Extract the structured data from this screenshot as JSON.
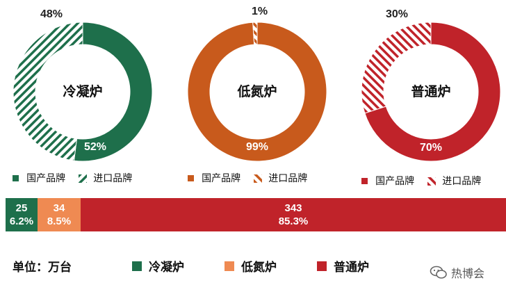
{
  "chart_data": [
    {
      "type": "pie",
      "center_label": "冷凝炉",
      "slices": [
        {
          "name": "国产品牌",
          "value": 52,
          "label": "52%",
          "color": "#1e6f4b",
          "pattern": "solid"
        },
        {
          "name": "进口品牌",
          "value": 48,
          "label": "48%",
          "color": "#1e6f4b",
          "pattern": "hatch"
        }
      ],
      "legend": [
        "国产品牌",
        "进口品牌"
      ]
    },
    {
      "type": "pie",
      "center_label": "低氮炉",
      "slices": [
        {
          "name": "国产品牌",
          "value": 99,
          "label": "99%",
          "color": "#c85a1c",
          "pattern": "solid"
        },
        {
          "name": "进口品牌",
          "value": 1,
          "label": "1%",
          "color": "#c85a1c",
          "pattern": "hatch"
        }
      ],
      "legend": [
        "国产品牌",
        "进口品牌"
      ]
    },
    {
      "type": "pie",
      "center_label": "普通炉",
      "slices": [
        {
          "name": "国产品牌",
          "value": 70,
          "label": "70%",
          "color": "#c0232a",
          "pattern": "solid"
        },
        {
          "name": "进口品牌",
          "value": 30,
          "label": "30%",
          "color": "#c0232a",
          "pattern": "hatch"
        }
      ],
      "legend": [
        "国产品牌",
        "进口品牌"
      ]
    },
    {
      "type": "bar",
      "orientation": "horizontal-stacked",
      "categories": [
        "冷凝炉",
        "低氮炉",
        "普通炉"
      ],
      "values": [
        25,
        34,
        343
      ],
      "percent_labels": [
        "6.2%",
        "8.5%",
        "85.3%"
      ],
      "colors": [
        "#1e6f4b",
        "#ef8a52",
        "#c0232a"
      ]
    }
  ],
  "bottom_legend": {
    "unit_text": "单位：万台",
    "items": [
      {
        "label": "冷凝炉",
        "color": "#1e6f4b"
      },
      {
        "label": "低氮炉",
        "color": "#ef8a52"
      },
      {
        "label": "普通炉",
        "color": "#c0232a"
      }
    ]
  },
  "watermark": {
    "text": "热博会",
    "icon": "wechat-icon"
  }
}
